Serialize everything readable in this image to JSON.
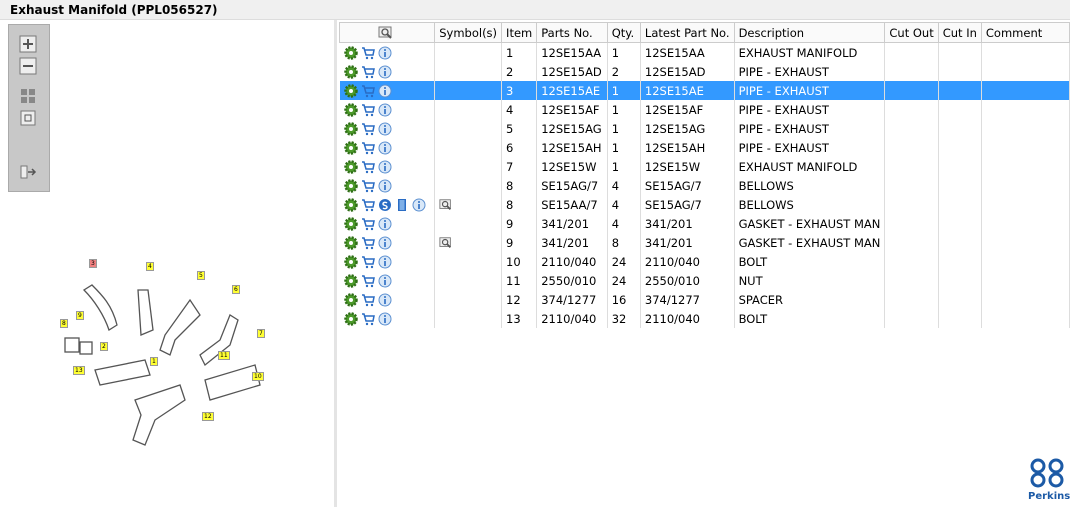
{
  "header": {
    "title": "Exhaust Manifold (PPL056527)"
  },
  "table": {
    "columns": [
      "Symbol(s)",
      "Item",
      "Parts No.",
      "Qty.",
      "Latest Part No.",
      "Description",
      "Cut Out",
      "Cut In",
      "Comment"
    ],
    "rows": [
      [
        1,
        "12SE15AA",
        1,
        "12SE15AA",
        "EXHAUST MANIFOLD"
      ],
      [
        2,
        "12SE15AD",
        2,
        "12SE15AD",
        "PIPE - EXHAUST"
      ],
      [
        3,
        "12SE15AE",
        1,
        "12SE15AE",
        "PIPE - EXHAUST"
      ],
      [
        4,
        "12SE15AF",
        1,
        "12SE15AF",
        "PIPE - EXHAUST"
      ],
      [
        5,
        "12SE15AG",
        1,
        "12SE15AG",
        "PIPE - EXHAUST"
      ],
      [
        6,
        "12SE15AH",
        1,
        "12SE15AH",
        "PIPE - EXHAUST"
      ],
      [
        7,
        "12SE15W",
        1,
        "12SE15W",
        "EXHAUST MANIFOLD"
      ],
      [
        8,
        "SE15AG/7",
        4,
        "SE15AG/7",
        "BELLOWS"
      ],
      [
        8,
        "SE15AA/7",
        4,
        "SE15AG/7",
        "BELLOWS"
      ],
      [
        9,
        "341/201",
        4,
        "341/201",
        "GASKET - EXHAUST MAN"
      ],
      [
        9,
        "341/201",
        8,
        "341/201",
        "GASKET - EXHAUST MAN"
      ],
      [
        10,
        "2110/040",
        24,
        "2110/040",
        "BOLT"
      ],
      [
        11,
        "2550/010",
        24,
        "2550/010",
        "NUT"
      ],
      [
        12,
        "374/1277",
        16,
        "374/1277",
        "SPACER"
      ],
      [
        13,
        "2110/040",
        32,
        "2110/040",
        "BOLT"
      ]
    ]
  },
  "diagram": {
    "callouts": [
      "3",
      "4",
      "5",
      "6",
      "9",
      "8",
      "2",
      "7",
      "1",
      "11",
      "10",
      "13",
      "12"
    ]
  },
  "logo": {
    "text": "Perkins"
  }
}
